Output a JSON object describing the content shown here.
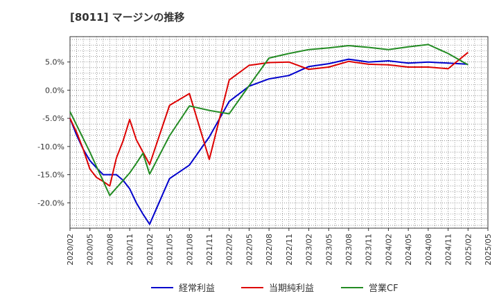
{
  "title": "[8011]  マージンの推移",
  "chart_data": {
    "type": "line",
    "title": "[8011]  マージンの推移",
    "x": [
      "2020/02",
      "2020/05",
      "2020/08",
      "2020/11",
      "2021/02",
      "2021/05",
      "2021/08",
      "2021/11",
      "2022/02",
      "2022/05",
      "2022/08",
      "2022/11",
      "2023/02",
      "2023/05",
      "2023/08",
      "2023/11",
      "2024/02",
      "2024/05",
      "2024/08",
      "2024/11",
      "2025/02",
      "2025/05"
    ],
    "ylim": [
      -24.5,
      9.5
    ],
    "yticks": [
      5,
      0,
      -5,
      -10,
      -15,
      -20
    ],
    "ytick_labels": [
      "5.0%",
      "0.0%",
      "-5.0%",
      "-10.0%",
      "-15.0%",
      "-20.0%"
    ],
    "grid": true,
    "legend_position": "bottom",
    "series": [
      {
        "name": "経常利益",
        "color": "#0000cc",
        "points": [
          [
            "2020/02",
            -5.0
          ],
          [
            "2020/03",
            -8.0
          ],
          [
            "2020/04",
            -10.5
          ],
          [
            "2020/05",
            -12.5
          ],
          [
            "2020/06",
            -13.8
          ],
          [
            "2020/07",
            -15.0
          ],
          [
            "2020/08",
            -15.0
          ],
          [
            "2020/09",
            -15.0
          ],
          [
            "2020/10",
            -16.0
          ],
          [
            "2020/11",
            -17.5
          ],
          [
            "2020/12",
            -20.0
          ],
          [
            "2021/01",
            -22.0
          ],
          [
            "2021/02",
            -23.8
          ],
          [
            "2021/05",
            -15.7
          ],
          [
            "2021/08",
            -13.3
          ],
          [
            "2021/11",
            -8.3
          ],
          [
            "2022/02",
            -2.0
          ],
          [
            "2022/05",
            0.7
          ],
          [
            "2022/08",
            2.0
          ],
          [
            "2022/11",
            2.6
          ],
          [
            "2023/02",
            4.2
          ],
          [
            "2023/05",
            4.7
          ],
          [
            "2023/08",
            5.5
          ],
          [
            "2023/11",
            5.0
          ],
          [
            "2024/02",
            5.2
          ],
          [
            "2024/05",
            4.8
          ],
          [
            "2024/08",
            5.0
          ],
          [
            "2024/11",
            4.8
          ],
          [
            "2025/02",
            4.6
          ]
        ]
      },
      {
        "name": "当期純利益",
        "color": "#dd0000",
        "points": [
          [
            "2020/02",
            -5.0
          ],
          [
            "2020/03",
            -7.5
          ],
          [
            "2020/04",
            -10.5
          ],
          [
            "2020/05",
            -14.0
          ],
          [
            "2020/06",
            -15.5
          ],
          [
            "2020/07",
            -16.2
          ],
          [
            "2020/08",
            -17.0
          ],
          [
            "2020/09",
            -12.0
          ],
          [
            "2020/10",
            -9.0
          ],
          [
            "2020/11",
            -5.2
          ],
          [
            "2020/12",
            -8.8
          ],
          [
            "2021/01",
            -11.0
          ],
          [
            "2021/02",
            -13.2
          ],
          [
            "2021/05",
            -2.7
          ],
          [
            "2021/08",
            -0.6
          ],
          [
            "2021/11",
            -12.3
          ],
          [
            "2022/02",
            1.8
          ],
          [
            "2022/05",
            4.4
          ],
          [
            "2022/08",
            4.9
          ],
          [
            "2022/11",
            5.0
          ],
          [
            "2023/02",
            3.7
          ],
          [
            "2023/05",
            4.1
          ],
          [
            "2023/08",
            5.1
          ],
          [
            "2023/11",
            4.6
          ],
          [
            "2024/02",
            4.5
          ],
          [
            "2024/05",
            4.1
          ],
          [
            "2024/08",
            4.1
          ],
          [
            "2024/11",
            3.8
          ],
          [
            "2025/02",
            6.7
          ]
        ]
      },
      {
        "name": "営業CF",
        "color": "#228B22",
        "points": [
          [
            "2020/02",
            -3.8
          ],
          [
            "2020/05",
            -11.0
          ],
          [
            "2020/08",
            -18.7
          ],
          [
            "2020/11",
            -14.7
          ],
          [
            "2020/12",
            -13.0
          ],
          [
            "2021/01",
            -11.2
          ],
          [
            "2021/02",
            -14.9
          ],
          [
            "2021/05",
            -8.1
          ],
          [
            "2021/08",
            -2.8
          ],
          [
            "2021/11",
            -3.6
          ],
          [
            "2022/02",
            -4.2
          ],
          [
            "2022/05",
            0.8
          ],
          [
            "2022/08",
            5.7
          ],
          [
            "2022/11",
            6.5
          ],
          [
            "2023/02",
            7.2
          ],
          [
            "2023/05",
            7.5
          ],
          [
            "2023/08",
            7.9
          ],
          [
            "2023/11",
            7.6
          ],
          [
            "2024/02",
            7.2
          ],
          [
            "2024/05",
            7.7
          ],
          [
            "2024/08",
            8.1
          ],
          [
            "2024/11",
            6.5
          ],
          [
            "2025/02",
            4.5
          ]
        ]
      }
    ]
  }
}
